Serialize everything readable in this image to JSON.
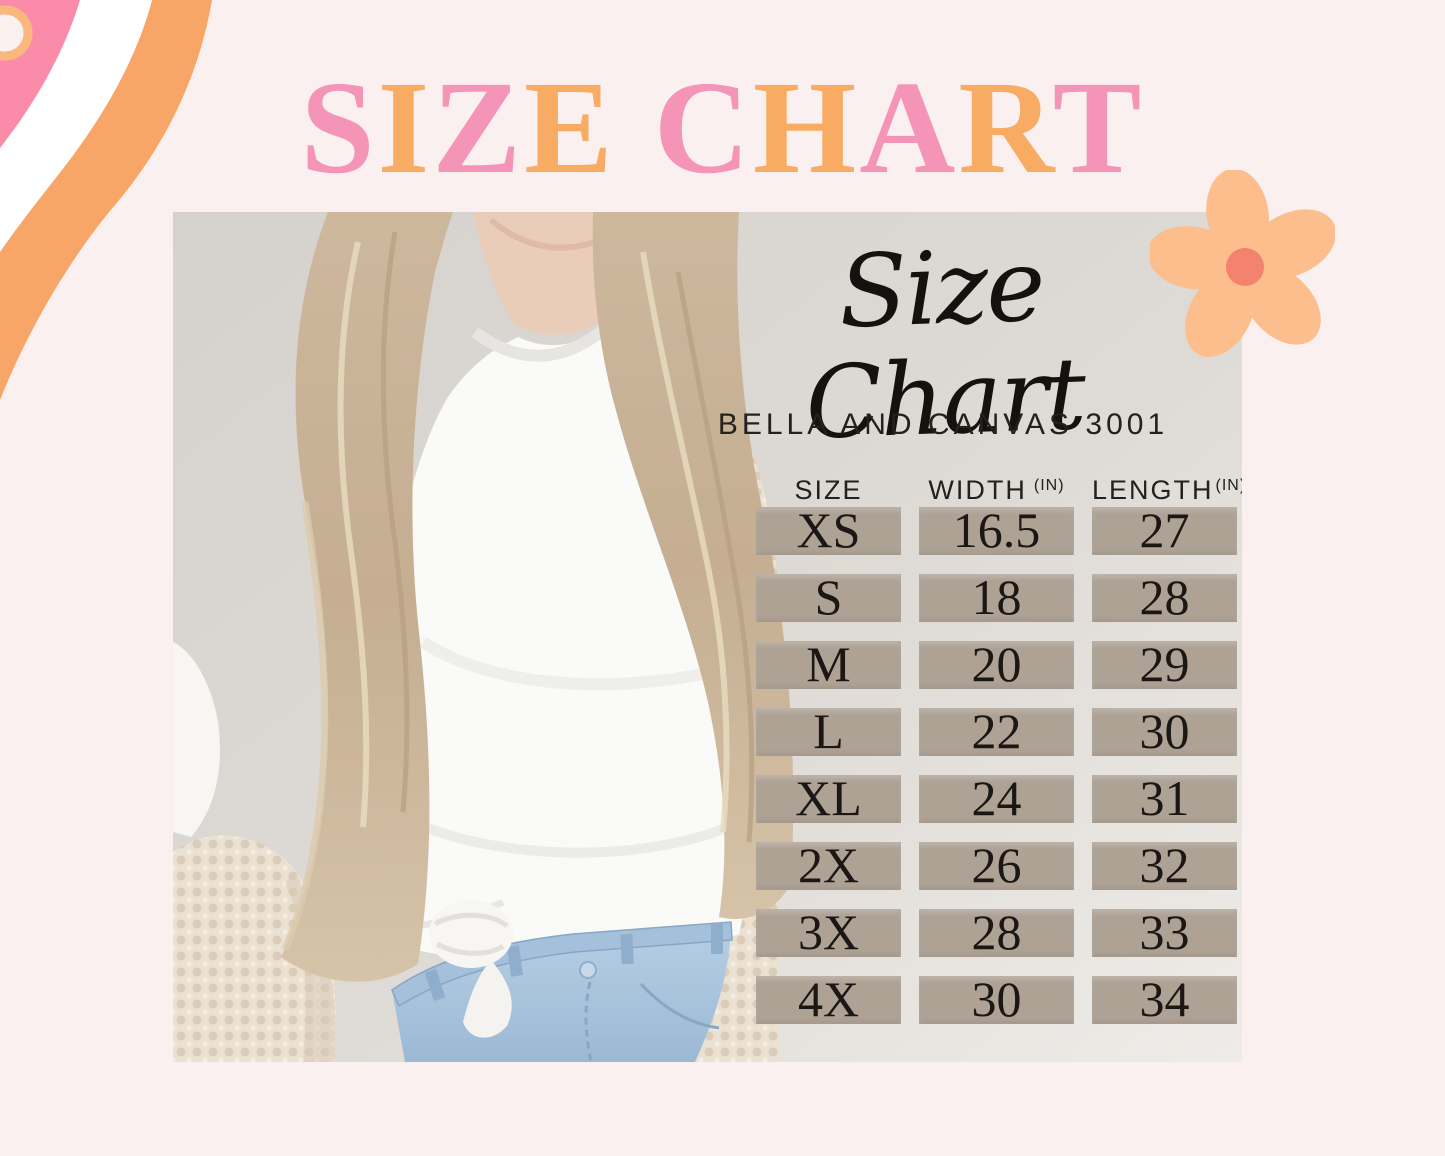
{
  "page": {
    "background": "#FBF0F0"
  },
  "title": {
    "text": "SIZE CHART",
    "letter_colors": [
      "#F494B7",
      "#F8AC63",
      "#F494B7",
      "#F8AC63",
      "",
      "#F494B7",
      "#F8AC63",
      "#F494B7",
      "#F8AC63",
      "#F494B7"
    ]
  },
  "card": {
    "script_heading": "Size Chart",
    "subtitle": "BELLA AND CANVAS 3001"
  },
  "size_table": {
    "columns": [
      "SIZE",
      "WIDTH",
      "LENGTH"
    ],
    "unit_label": "(IN)",
    "rows": [
      {
        "size": "XS",
        "width": "16.5",
        "length": "27"
      },
      {
        "size": "S",
        "width": "18",
        "length": "28"
      },
      {
        "size": "M",
        "width": "20",
        "length": "29"
      },
      {
        "size": "L",
        "width": "22",
        "length": "30"
      },
      {
        "size": "XL",
        "width": "24",
        "length": "31"
      },
      {
        "size": "2X",
        "width": "26",
        "length": "32"
      },
      {
        "size": "3X",
        "width": "28",
        "length": "33"
      },
      {
        "size": "4X",
        "width": "30",
        "length": "34"
      }
    ]
  },
  "colors": {
    "background_pink": "#FBF0F0",
    "title_pink": "#F494B7",
    "title_orange": "#F8AC63",
    "swirl_pink": "#FA8CA9",
    "swirl_orange": "#F7A667",
    "swirl_ring_orange": "#F9B97E",
    "swirl_white": "#FFFFFF",
    "flower_petal": "#FBBE8C",
    "flower_center": "#F3826F",
    "cell_taupe": "#AEA295",
    "table_text": "#1B1714",
    "wall_light": "#D6D2CD",
    "wall_lighter": "#ECEAE6"
  },
  "chart_data": {
    "type": "table",
    "title": "Size Chart",
    "subtitle": "BELLA AND CANVAS 3001",
    "columns": [
      "SIZE",
      "WIDTH (IN)",
      "LENGTH (IN)"
    ],
    "rows": [
      [
        "XS",
        "16.5",
        "27"
      ],
      [
        "S",
        "18",
        "28"
      ],
      [
        "M",
        "20",
        "29"
      ],
      [
        "L",
        "22",
        "30"
      ],
      [
        "XL",
        "24",
        "31"
      ],
      [
        "2X",
        "26",
        "32"
      ],
      [
        "3X",
        "28",
        "33"
      ],
      [
        "4X",
        "30",
        "34"
      ]
    ]
  }
}
